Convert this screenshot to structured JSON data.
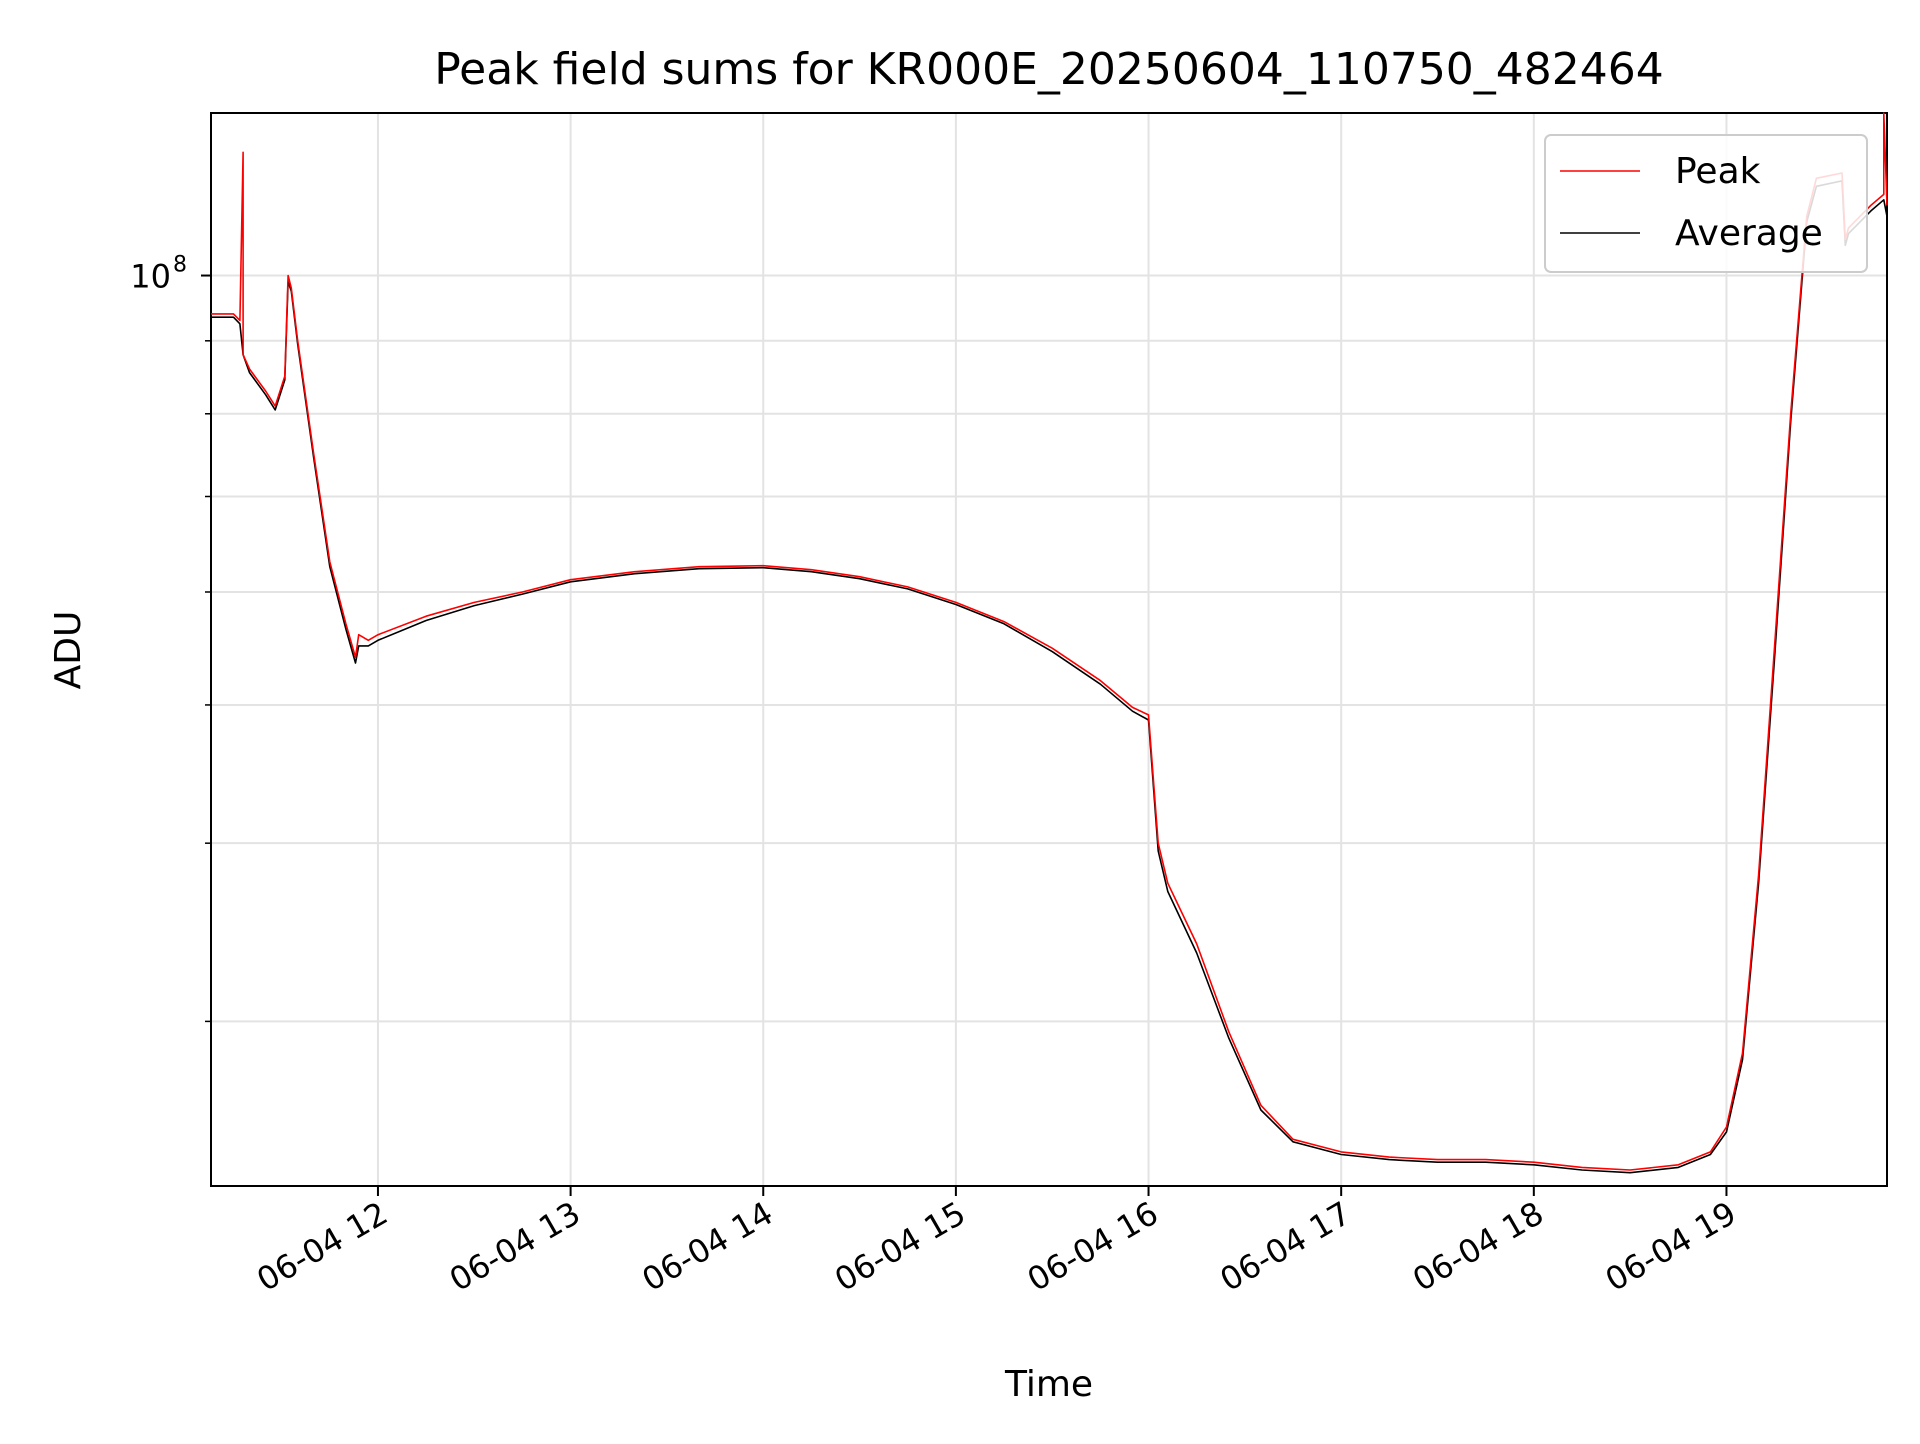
{
  "chart_data": {
    "type": "line",
    "title": "Peak field sums for KR000E_20250604_110750_482464",
    "xlabel": "Time",
    "ylabel": "ADU",
    "y_scale": "log",
    "grid": true,
    "legend_position": "upper-right",
    "x_tick_labels": [
      "06-04 12",
      "06-04 13",
      "06-04 14",
      "06-04 15",
      "06-04 16",
      "06-04 17",
      "06-04 18",
      "06-04 19"
    ],
    "y_tick_label": {
      "base": "10",
      "exponent": "8"
    },
    "xlim": [
      "2025-06-04 11:08",
      "2025-06-04 19:50"
    ],
    "ylim": [
      23000000,
      130000000
    ],
    "series": [
      {
        "name": "Peak",
        "color": "#ff0000",
        "x": [
          "2025-06-04 11:08",
          "2025-06-04 11:15",
          "2025-06-04 11:17",
          "2025-06-04 11:18",
          "2025-06-04 11:18",
          "2025-06-04 11:20",
          "2025-06-04 11:25",
          "2025-06-04 11:28",
          "2025-06-04 11:31",
          "2025-06-04 11:32",
          "2025-06-04 11:33",
          "2025-06-04 11:35",
          "2025-06-04 11:40",
          "2025-06-04 11:45",
          "2025-06-04 11:50",
          "2025-06-04 11:53",
          "2025-06-04 11:54",
          "2025-06-04 11:57",
          "2025-06-04 12:00",
          "2025-06-04 12:15",
          "2025-06-04 12:30",
          "2025-06-04 12:45",
          "2025-06-04 13:00",
          "2025-06-04 13:20",
          "2025-06-04 13:40",
          "2025-06-04 14:00",
          "2025-06-04 14:15",
          "2025-06-04 14:30",
          "2025-06-04 14:45",
          "2025-06-04 15:00",
          "2025-06-04 15:15",
          "2025-06-04 15:30",
          "2025-06-04 15:45",
          "2025-06-04 15:55",
          "2025-06-04 16:00",
          "2025-06-04 16:03",
          "2025-06-04 16:06",
          "2025-06-04 16:15",
          "2025-06-04 16:25",
          "2025-06-04 16:35",
          "2025-06-04 16:45",
          "2025-06-04 17:00",
          "2025-06-04 17:15",
          "2025-06-04 17:30",
          "2025-06-04 17:45",
          "2025-06-04 18:00",
          "2025-06-04 18:15",
          "2025-06-04 18:30",
          "2025-06-04 18:45",
          "2025-06-04 18:55",
          "2025-06-04 19:00",
          "2025-06-04 19:05",
          "2025-06-04 19:10",
          "2025-06-04 19:15",
          "2025-06-04 19:20",
          "2025-06-04 19:25",
          "2025-06-04 19:28",
          "2025-06-04 19:36",
          "2025-06-04 19:37",
          "2025-06-04 19:38",
          "2025-06-04 19:45",
          "2025-06-04 19:49",
          "2025-06-04 19:49",
          "2025-06-04 19:50"
        ],
        "y": [
          94000000,
          94000000,
          93000000,
          122000000,
          88000000,
          86000000,
          83000000,
          81000000,
          85000000,
          100000000,
          98000000,
          90000000,
          75000000,
          63000000,
          57000000,
          54000000,
          56000000,
          55500000,
          56000000,
          57700000,
          59000000,
          60000000,
          61200000,
          62000000,
          62500000,
          62600000,
          62200000,
          61500000,
          60500000,
          59000000,
          57200000,
          54800000,
          52000000,
          49800000,
          49200000,
          40000000,
          37500000,
          34000000,
          29500000,
          26200000,
          24800000,
          24300000,
          24100000,
          24000000,
          24000000,
          23900000,
          23700000,
          23600000,
          23800000,
          24300000,
          25300000,
          28500000,
          38000000,
          55000000,
          80000000,
          110000000,
          117000000,
          118000000,
          106000000,
          108000000,
          112000000,
          114000000,
          132000000,
          112000000
        ]
      },
      {
        "name": "Average",
        "color": "#000000",
        "x": [
          "2025-06-04 11:08",
          "2025-06-04 11:15",
          "2025-06-04 11:17",
          "2025-06-04 11:18",
          "2025-06-04 11:20",
          "2025-06-04 11:25",
          "2025-06-04 11:28",
          "2025-06-04 11:31",
          "2025-06-04 11:32",
          "2025-06-04 11:33",
          "2025-06-04 11:35",
          "2025-06-04 11:40",
          "2025-06-04 11:45",
          "2025-06-04 11:50",
          "2025-06-04 11:53",
          "2025-06-04 11:54",
          "2025-06-04 11:57",
          "2025-06-04 12:00",
          "2025-06-04 12:15",
          "2025-06-04 12:30",
          "2025-06-04 12:45",
          "2025-06-04 13:00",
          "2025-06-04 13:20",
          "2025-06-04 13:40",
          "2025-06-04 14:00",
          "2025-06-04 14:15",
          "2025-06-04 14:30",
          "2025-06-04 14:45",
          "2025-06-04 15:00",
          "2025-06-04 15:15",
          "2025-06-04 15:30",
          "2025-06-04 15:45",
          "2025-06-04 15:55",
          "2025-06-04 16:00",
          "2025-06-04 16:03",
          "2025-06-04 16:06",
          "2025-06-04 16:15",
          "2025-06-04 16:25",
          "2025-06-04 16:35",
          "2025-06-04 16:45",
          "2025-06-04 17:00",
          "2025-06-04 17:15",
          "2025-06-04 17:30",
          "2025-06-04 17:45",
          "2025-06-04 18:00",
          "2025-06-04 18:15",
          "2025-06-04 18:30",
          "2025-06-04 18:45",
          "2025-06-04 18:55",
          "2025-06-04 19:00",
          "2025-06-04 19:05",
          "2025-06-04 19:10",
          "2025-06-04 19:15",
          "2025-06-04 19:20",
          "2025-06-04 19:25",
          "2025-06-04 19:28",
          "2025-06-04 19:36",
          "2025-06-04 19:37",
          "2025-06-04 19:38",
          "2025-06-04 19:45",
          "2025-06-04 19:49",
          "2025-06-04 19:50"
        ],
        "y": [
          93500000,
          93500000,
          92500000,
          88000000,
          85500000,
          82500000,
          80500000,
          84500000,
          99000000,
          97500000,
          89500000,
          74500000,
          62500000,
          56500000,
          53500000,
          55000000,
          55000000,
          55500000,
          57300000,
          58700000,
          59800000,
          61000000,
          61800000,
          62300000,
          62400000,
          62000000,
          61300000,
          60300000,
          58800000,
          57000000,
          54500000,
          51700000,
          49500000,
          48800000,
          39500000,
          37000000,
          33500000,
          29200000,
          26000000,
          24700000,
          24200000,
          24000000,
          23900000,
          23900000,
          23800000,
          23600000,
          23500000,
          23700000,
          24200000,
          25100000,
          28200000,
          37500000,
          54000000,
          79000000,
          109000000,
          115500000,
          116500000,
          105000000,
          107000000,
          111000000,
          113000000,
          110000000
        ]
      }
    ]
  }
}
